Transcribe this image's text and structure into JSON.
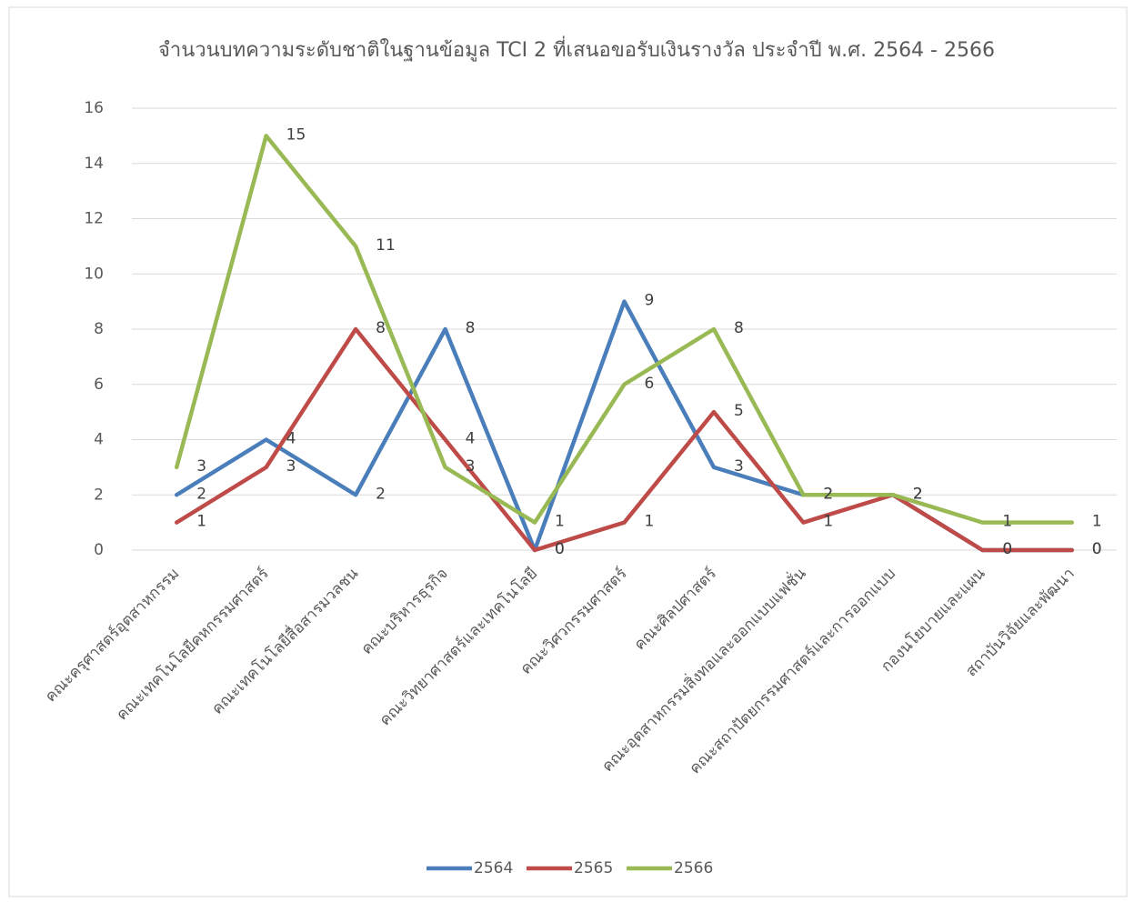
{
  "chart_data": {
    "type": "line",
    "title": "จำนวนบทความระดับชาติในฐานข้อมูล TCI 2 ที่เสนอขอรับเงินรางวัล ประจำปี พ.ศ. 2564 - 2566",
    "categories": [
      "คณะครุศาสตร์อุตสาหกรรม",
      "คณะเทคโนโลยีคหกรรมศาสตร์",
      "คณะเทคโนโลยีสื่อสารมวลชน",
      "คณะบริหารธุรกิจ",
      "คณะวิทยาศาสตร์และเทคโนโลยี",
      "คณะวิศวกรรมศาสตร์",
      "คณะศิลปศาสตร์",
      "คณะอุตสาหกรรมสิ่งทอและออกแบบแฟชั่น",
      "คณะสถาปัตยกรรมศาสตร์และการออกแบบ",
      "กองนโยบายและแผน",
      "สถาบันวิจัยและพัฒนา"
    ],
    "series": [
      {
        "name": "2564",
        "color": "#4a7ebb",
        "values": [
          2,
          4,
          2,
          8,
          0,
          9,
          3,
          2,
          2,
          0,
          0
        ]
      },
      {
        "name": "2565",
        "color": "#be4b48",
        "values": [
          1,
          3,
          8,
          4,
          0,
          1,
          5,
          1,
          2,
          0,
          0
        ]
      },
      {
        "name": "2566",
        "color": "#98b954",
        "values": [
          3,
          15,
          11,
          3,
          1,
          6,
          8,
          2,
          2,
          1,
          1
        ]
      }
    ],
    "ylim": [
      0,
      16
    ],
    "yticks": [
      0,
      2,
      4,
      6,
      8,
      10,
      12,
      14,
      16
    ],
    "grid": true,
    "legend": "bottom"
  }
}
